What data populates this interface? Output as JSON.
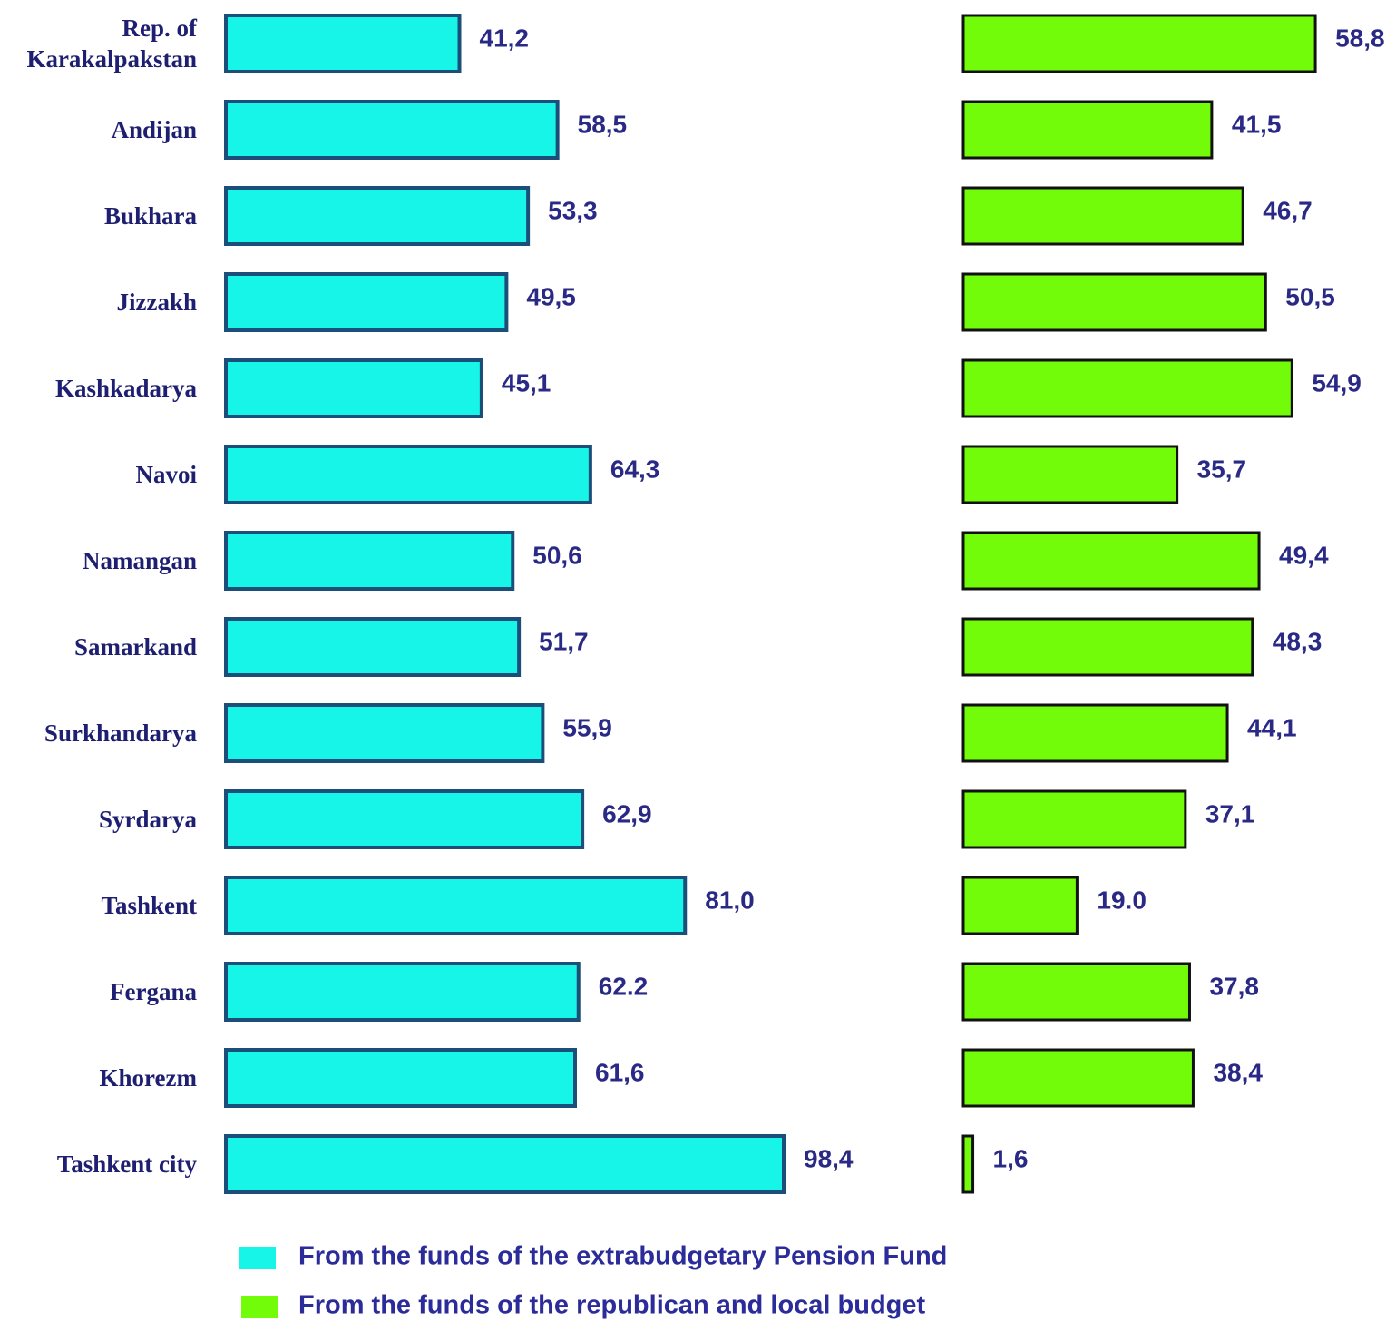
{
  "chart_data": {
    "type": "bar",
    "categories": [
      "Rep. of\nKarakalpakstan",
      "Andijan",
      "Bukhara",
      "Jizzakh",
      "Kashkadarya",
      "Navoi",
      "Namangan",
      "Samarkand",
      "Surkhandarya",
      "Syrdarya",
      "Tashkent",
      "Fergana",
      "Khorezm",
      "Tashkent city"
    ],
    "series": [
      {
        "name": "From the funds of the extrabudgetary Pension Fund",
        "color": "#17f4e8",
        "edge": "#1b4f7a",
        "values": [
          41.2,
          58.5,
          53.3,
          49.5,
          45.1,
          64.3,
          50.6,
          51.7,
          55.9,
          62.9,
          81.0,
          62.2,
          61.6,
          98.4
        ],
        "value_labels": [
          "41,2",
          "58,5",
          "53,3",
          "49,5",
          "45,1",
          "64,3",
          "50,6",
          "51,7",
          "55,9",
          "62,9",
          "81,0",
          "62.2",
          "61,6",
          "98,4"
        ]
      },
      {
        "name": "From the funds of the republican and local budget",
        "color": "#72fc0a",
        "edge": "#111111",
        "values": [
          58.8,
          41.5,
          46.7,
          50.5,
          54.9,
          35.7,
          49.4,
          48.3,
          44.1,
          37.1,
          19.0,
          37.8,
          38.4,
          1.6
        ],
        "value_labels": [
          "58,8",
          "41,5",
          "46,7",
          "50,5",
          "54,9",
          "35,7",
          "49,4",
          "48,3",
          "44,1",
          "37,1",
          "19.0",
          "37,8",
          "38,4",
          "1,6"
        ]
      }
    ]
  }
}
